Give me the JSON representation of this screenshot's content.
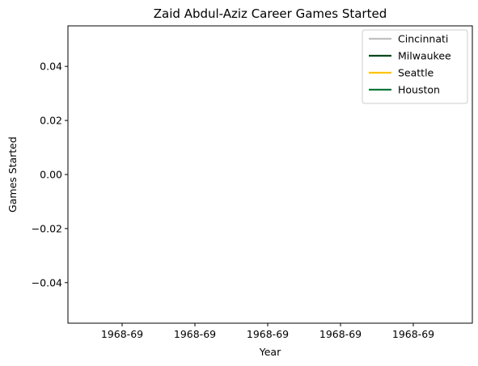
{
  "chart_data": {
    "type": "line",
    "title": "Zaid Abdul-Aziz Career Games Started",
    "xlabel": "Year",
    "ylabel": "Games Started",
    "x_ticks": [
      "1968-69",
      "1968-69",
      "1968-69",
      "1968-69",
      "1968-69"
    ],
    "y_ticks": [
      "0.04",
      "0.02",
      "0.00",
      "−0.02",
      "−0.04"
    ],
    "y_tick_values": [
      0.04,
      0.02,
      0.0,
      -0.02,
      -0.04
    ],
    "ylim": [
      -0.055,
      0.055
    ],
    "grid": false,
    "legend_position": "top-right",
    "series": [
      {
        "name": "Cincinnati",
        "color": "#c0c0c0",
        "values": []
      },
      {
        "name": "Milwaukee",
        "color": "#00471b",
        "values": []
      },
      {
        "name": "Seattle",
        "color": "#ffc200",
        "values": []
      },
      {
        "name": "Houston",
        "color": "#00773a",
        "values": []
      }
    ]
  }
}
